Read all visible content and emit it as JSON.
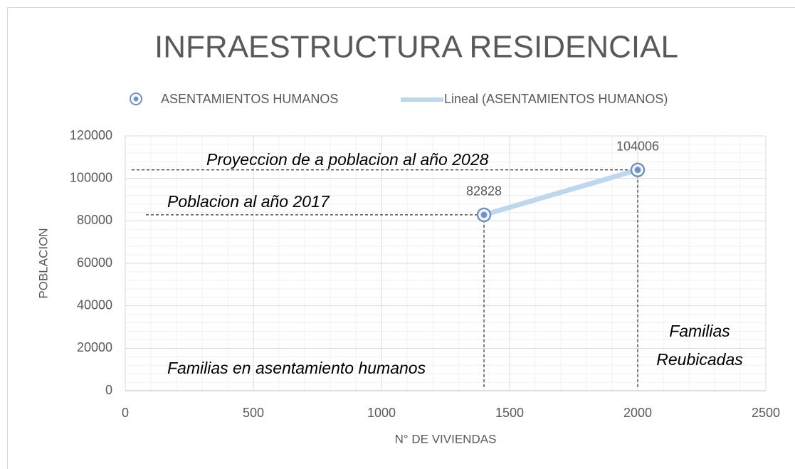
{
  "chart_data": {
    "type": "scatter",
    "title": "INFRAESTRUCTURA RESIDENCIAL",
    "x_label": "N° DE VIVIENDAS",
    "y_label": "POBLACION",
    "series": [
      {
        "name": "ASENTAMIENTOS HUMANOS",
        "color": "#6f93c0",
        "x": [
          1400,
          2000
        ],
        "values": [
          82828,
          104006
        ]
      }
    ],
    "trendline": {
      "name": "Lineal (ASENTAMIENTOS HUMANOS)",
      "type": "linear",
      "color": "#bdd7ee"
    },
    "xlim": [
      0,
      2500
    ],
    "xticks": [
      0,
      500,
      1000,
      1500,
      2000,
      2500
    ],
    "ylim": [
      0,
      120000
    ],
    "yticks": [
      0,
      20000,
      40000,
      60000,
      80000,
      100000,
      120000
    ],
    "grid": true,
    "minor_grid": true,
    "legend": "top",
    "annotations": [
      "Proyeccion de a poblacion al año 2028",
      "Poblacion al año 2017",
      "Familias en asentamiento humanos",
      "Familias",
      "Reubicadas"
    ]
  }
}
